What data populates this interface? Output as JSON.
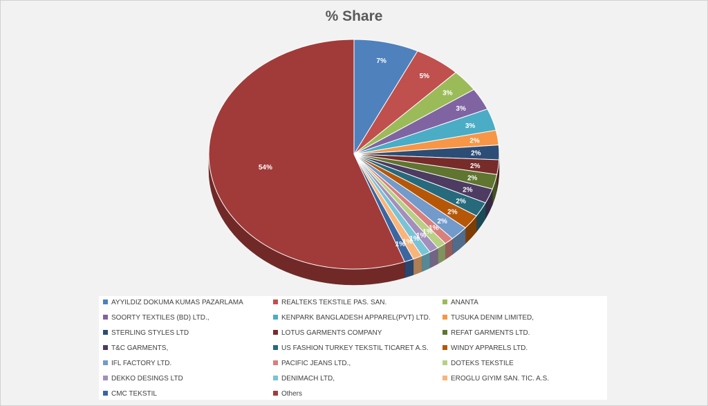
{
  "chart_data": {
    "type": "pie",
    "title": "% Share",
    "legend_position": "bottom",
    "slices": [
      {
        "name": "AYYILDIZ DOKUMA KUMAS PAZARLAMA",
        "value": 7,
        "label": "7%",
        "color": "#4f81bd"
      },
      {
        "name": "REALTEKS TEKSTILE PAS. SAN.",
        "value": 5,
        "label": "5%",
        "color": "#c0504d"
      },
      {
        "name": "ANANTA",
        "value": 3,
        "label": "3%",
        "color": "#9bbb59"
      },
      {
        "name": "SOORTY TEXTILES (BD) LTD.,",
        "value": 3,
        "label": "3%",
        "color": "#8064a2"
      },
      {
        "name": "KENPARK BANGLADESH APPAREL(PVT) LTD.",
        "value": 3,
        "label": "3%",
        "color": "#4bacc6"
      },
      {
        "name": "TUSUKA DENIM LIMITED,",
        "value": 2,
        "label": "2%",
        "color": "#f79646"
      },
      {
        "name": "STERLING STYLES LTD",
        "value": 2,
        "label": "2%",
        "color": "#2c4d75"
      },
      {
        "name": "LOTUS GARMENTS COMPANY",
        "value": 2,
        "label": "2%",
        "color": "#772c2a"
      },
      {
        "name": "REFAT GARMENTS LTD.",
        "value": 2,
        "label": "2%",
        "color": "#5f7530"
      },
      {
        "name": "T&C GARMENTS,",
        "value": 2,
        "label": "2%",
        "color": "#4d3b62"
      },
      {
        "name": "US FASHION TURKEY TEKSTIL TICARET A.S.",
        "value": 2,
        "label": "2%",
        "color": "#276a7c"
      },
      {
        "name": "WINDY APPARELS LTD.",
        "value": 2,
        "label": "2%",
        "color": "#b65708"
      },
      {
        "name": "IFL FACTORY LTD.",
        "value": 2,
        "label": "2%",
        "color": "#729aca"
      },
      {
        "name": "PACIFIC JEANS LTD.,",
        "value": 1,
        "label": "1%",
        "color": "#d9807e"
      },
      {
        "name": "DOTEKS TEKSTILE",
        "value": 1,
        "label": "1%",
        "color": "#b7d085"
      },
      {
        "name": "DEKKO DESINGS LTD",
        "value": 1,
        "label": "1%",
        "color": "#a38fbc"
      },
      {
        "name": "DENIMACH LTD,",
        "value": 1,
        "label": "1%",
        "color": "#79c3d6"
      },
      {
        "name": "EROGLU GIYIM SAN. TIC. A.S.",
        "value": 1,
        "label": "1%",
        "color": "#f9b47a"
      },
      {
        "name": "CMC TEKSTIL",
        "value": 1,
        "label": "1%",
        "color": "#3b66a0"
      },
      {
        "name": "Others",
        "value": 54,
        "label": "54%",
        "color": "#a13b39"
      }
    ]
  }
}
